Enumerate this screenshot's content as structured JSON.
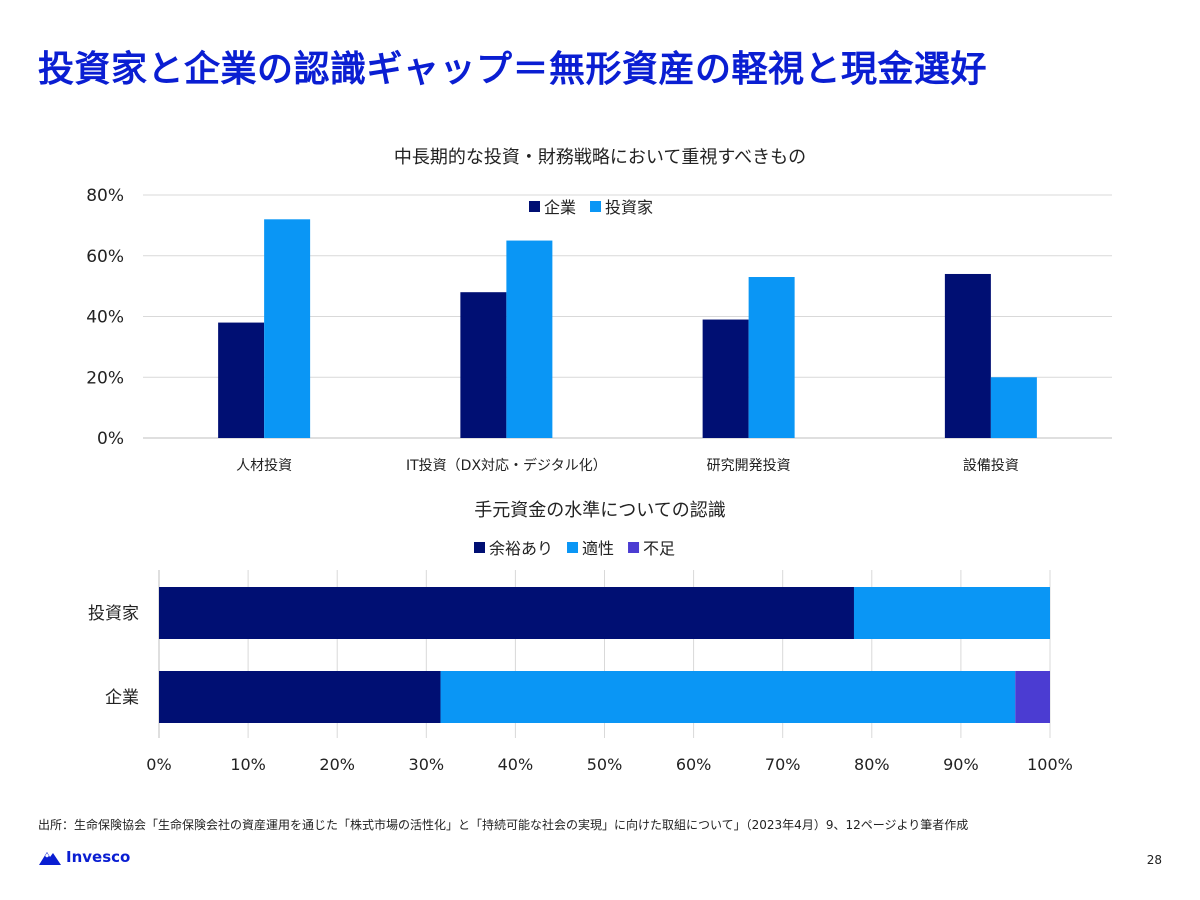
{
  "slide": {
    "title": "投資家と企業の認識ギャップ＝無形資産の軽視と現金選好",
    "source": "出所：生命保険協会「生命保険会社の資産運用を通じた「株式市場の活性化」と「持続可能な社会の実現」に向けた取組について」（2023年4月）9、12ページより筆者作成",
    "brand": "Invesco",
    "page_number": "28"
  },
  "colors": {
    "title": "#0a1ed2",
    "navy": "#000f73",
    "blue": "#0a96f5",
    "purple": "#4b3cd2",
    "grid": "#d9d9d9",
    "brand": "#0a1ed2"
  },
  "chart_data": [
    {
      "type": "bar",
      "title": "中長期的な投資・財務戦略において重視すべきもの",
      "categories": [
        "人材投資",
        "IT投資（DX対応・デジタル化）",
        "研究開発投資",
        "設備投資"
      ],
      "series": [
        {
          "name": "企業",
          "values": [
            38,
            48,
            39,
            54
          ],
          "color": "#000f73"
        },
        {
          "name": "投資家",
          "values": [
            72,
            65,
            53,
            20
          ],
          "color": "#0a96f5"
        }
      ],
      "y_ticks": [
        "0%",
        "20%",
        "40%",
        "60%",
        "80%"
      ],
      "ylim": [
        0,
        80
      ],
      "legend": "top-center",
      "grid": true
    },
    {
      "type": "bar",
      "orientation": "horizontal-stacked-100",
      "title": "手元資金の水準についての認識",
      "categories": [
        "投資家",
        "企業"
      ],
      "series": [
        {
          "name": "余裕あり",
          "values": [
            78,
            31.6
          ],
          "color": "#000f73"
        },
        {
          "name": "適性",
          "values": [
            22,
            64.5
          ],
          "color": "#0a96f5"
        },
        {
          "name": "不足",
          "values": [
            0,
            3.9
          ],
          "color": "#4b3cd2"
        }
      ],
      "x_ticks": [
        "0%",
        "10%",
        "20%",
        "30%",
        "40%",
        "50%",
        "60%",
        "70%",
        "80%",
        "90%",
        "100%"
      ],
      "xlim": [
        0,
        100
      ],
      "legend": "top-center",
      "grid": true
    }
  ]
}
